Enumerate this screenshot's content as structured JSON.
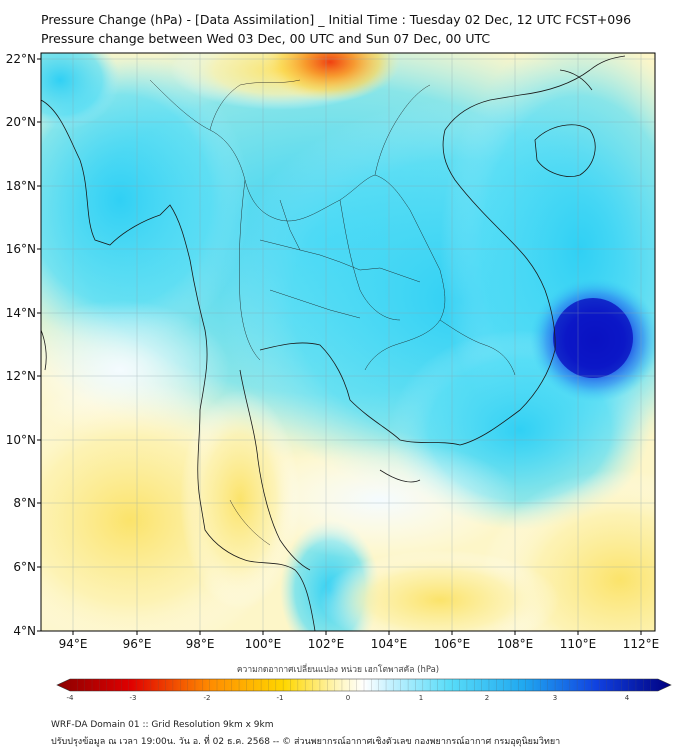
{
  "title": {
    "line1": "Pressure Change (hPa) - [Data Assimilation] _ Initial Time : Tuesday 02 Dec, 12 UTC FCST+096",
    "line2": "Pressure change between Wed 03 Dec, 00 UTC and Sun 07 Dec, 00 UTC"
  },
  "axes": {
    "lat_labels": [
      "22°N",
      "20°N",
      "18°N",
      "16°N",
      "14°N",
      "12°N",
      "10°N",
      "8°N",
      "6°N",
      "4°N"
    ],
    "lon_labels": [
      "94°E",
      "96°E",
      "98°E",
      "100°E",
      "102°E",
      "104°E",
      "106°E",
      "108°E",
      "110°E",
      "112°E"
    ]
  },
  "colorbar": {
    "label": "ความกดอากาศเปลี่ยนแปลง หน่วย เฮกโตพาสคัล (hPa)",
    "range": [
      -4,
      4
    ],
    "ticks": [
      "-4",
      "-3",
      "-2",
      "-1",
      "0",
      "1",
      "2",
      "3",
      "4"
    ]
  },
  "footer": {
    "line1": "WRF-DA Domain 01 :: Grid Resolution 9km x 9km",
    "line2": "ปรับปรุงข้อมูล ณ เวลา 19:00น. วัน อ. ที่ 02 ธ.ค. 2568 -- © ส่วนพยากรณ์อากาศเชิงตัวเลข กองพยากรณ์อากาศ กรมอุตุนิยมวิทยา"
  },
  "colors": {
    "strong_fall": "#8b0000",
    "fall": "#ffd700",
    "neutral": "#ffffff",
    "rise": "#38d4f4",
    "strong_rise": "#0010c8"
  }
}
